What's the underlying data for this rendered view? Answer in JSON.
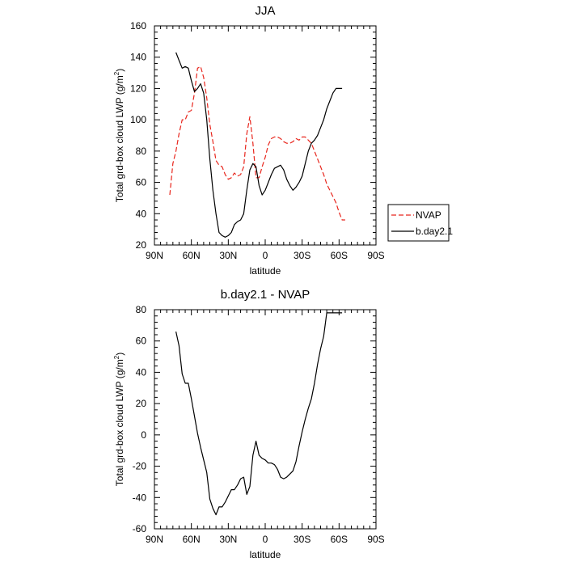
{
  "chart_data": [
    {
      "type": "line",
      "title": "JJA",
      "xlabel": "latitude",
      "ylabel": "Total grd-box cloud LWP (g/m",
      "ylabel_sup": "2",
      "ylabel_end": ")",
      "xlim": [
        90,
        -90
      ],
      "ylim": [
        20,
        160
      ],
      "xticks": [
        90,
        60,
        30,
        0,
        -30,
        -60,
        -90
      ],
      "xtick_labels": [
        "90N",
        "60N",
        "30N",
        "0",
        "30S",
        "60S",
        "90S"
      ],
      "yticks": [
        20,
        40,
        60,
        80,
        100,
        120,
        140,
        160
      ],
      "ytick_labels": [
        "20",
        "40",
        "60",
        "80",
        "100",
        "120",
        "140",
        "160"
      ],
      "legend": "right-outside",
      "series": [
        {
          "name": "NVAP",
          "color": "#e8261d",
          "dash": "dashed",
          "x": [
            77.5,
            75,
            72.5,
            70,
            67.5,
            65,
            62.5,
            60,
            57.5,
            55,
            52.5,
            50,
            47.5,
            45,
            42.5,
            40,
            37.5,
            35,
            32.5,
            30,
            27.5,
            25,
            22.5,
            20,
            17.5,
            15,
            12.5,
            10,
            7.5,
            5,
            2.5,
            0,
            -2.5,
            -5,
            -7.5,
            -10,
            -12.5,
            -15,
            -17.5,
            -20,
            -22.5,
            -25,
            -27.5,
            -30,
            -32.5,
            -35,
            -37.5,
            -40,
            -42.5,
            -45,
            -47.5,
            -50,
            -52.5,
            -55,
            -57.5,
            -60,
            -62.5,
            -65
          ],
          "y": [
            52,
            72,
            80,
            91,
            100,
            100,
            105,
            106,
            117,
            133,
            134,
            127,
            114,
            97,
            86,
            74,
            71,
            70,
            65,
            62,
            63,
            66,
            64,
            65,
            70,
            91,
            102,
            85,
            63,
            63,
            70,
            76,
            84,
            88,
            89,
            89,
            88,
            86,
            85,
            85,
            86,
            88,
            87,
            89,
            89,
            87,
            85,
            80,
            75,
            70,
            65,
            59,
            55,
            51,
            47,
            41,
            36,
            36
          ]
        },
        {
          "name": "b.day2.1",
          "color": "#000000",
          "dash": "solid",
          "x": [
            72.5,
            70,
            67.5,
            65,
            62.5,
            60,
            57.5,
            55,
            52.5,
            50,
            47.5,
            45,
            42.5,
            40,
            37.5,
            35,
            32.5,
            30,
            27.5,
            25,
            22.5,
            20,
            17.5,
            15,
            12.5,
            10,
            7.5,
            5,
            2.5,
            0,
            -2.5,
            -5,
            -7.5,
            -10,
            -12.5,
            -15,
            -17.5,
            -20,
            -22.5,
            -25,
            -27.5,
            -30,
            -32.5,
            -35,
            -37.5,
            -40,
            -42.5,
            -45,
            -47.5,
            -50,
            -52.5,
            -55,
            -57.5,
            -60,
            -62.5
          ],
          "y": [
            143,
            138,
            133,
            134,
            133,
            125,
            118,
            120,
            123,
            117,
            100,
            75,
            55,
            40,
            28,
            26,
            25,
            26,
            28,
            33,
            35,
            36,
            40,
            55,
            68,
            72,
            70,
            58,
            52,
            55,
            60,
            65,
            69,
            70,
            71,
            68,
            62,
            58,
            55,
            57,
            60,
            64,
            72,
            80,
            85,
            87,
            90,
            95,
            100,
            107,
            112,
            117,
            120,
            120,
            120
          ]
        }
      ]
    },
    {
      "type": "line",
      "title": "b.day2.1 - NVAP",
      "xlabel": "latitude",
      "ylabel": "Total grd-box cloud LWP (g/m",
      "ylabel_sup": "2",
      "ylabel_end": ")",
      "xlim": [
        90,
        -90
      ],
      "ylim": [
        -60,
        80
      ],
      "xticks": [
        90,
        60,
        30,
        0,
        -30,
        -60,
        -90
      ],
      "xtick_labels": [
        "90N",
        "60N",
        "30N",
        "0",
        "30S",
        "60S",
        "90S"
      ],
      "yticks": [
        -60,
        -40,
        -20,
        0,
        20,
        40,
        60,
        80
      ],
      "ytick_labels": [
        "-60",
        "-40",
        "-20",
        "0",
        "20",
        "40",
        "60",
        "80"
      ],
      "series": [
        {
          "color": "#000000",
          "dash": "solid",
          "x": [
            72.5,
            70,
            67.5,
            65,
            62.5,
            60,
            57.5,
            55,
            52.5,
            50,
            47.5,
            45,
            42.5,
            40,
            37.5,
            35,
            32.5,
            30,
            27.5,
            25,
            22.5,
            20,
            17.5,
            15,
            12.5,
            10,
            7.5,
            5,
            2.5,
            0,
            -2.5,
            -5,
            -7.5,
            -10,
            -12.5,
            -15,
            -17.5,
            -20,
            -22.5,
            -25,
            -27.5,
            -30,
            -32.5,
            -35,
            -37.5,
            -40,
            -42.5,
            -45,
            -47.5,
            -50,
            -52.5,
            -55,
            -57.5,
            -60,
            -62.5
          ],
          "y": [
            66,
            57,
            39,
            33,
            33,
            23,
            12,
            1,
            -8,
            -16,
            -24,
            -41,
            -47,
            -51,
            -46,
            -46,
            -43,
            -39,
            -35,
            -35,
            -32,
            -28,
            -27,
            -38,
            -33,
            -13,
            -4,
            -13,
            -15,
            -16,
            -18,
            -18,
            -19,
            -22,
            -27,
            -28,
            -27,
            -25,
            -23,
            -17,
            -7,
            2,
            10,
            17,
            23,
            33,
            45,
            55,
            63,
            78,
            78,
            78,
            78,
            78,
            78
          ]
        }
      ]
    }
  ]
}
